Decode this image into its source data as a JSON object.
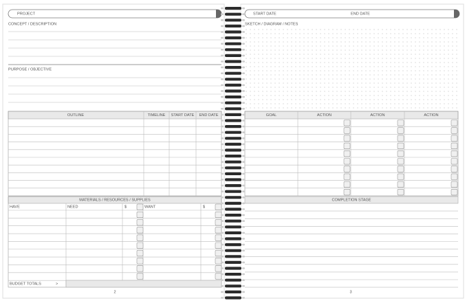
{
  "left_page": {
    "project_label": "PROJECT",
    "concept_label": "CONCEPT / DESCRIPTION",
    "purpose_label": "PURPOSE / OBJECTIVE",
    "outline_headers": [
      "OUTLINE",
      "TIMELINE",
      "START DATE",
      "END DATE"
    ],
    "materials_title": "MATERIALS / RESOURCES / SUPPLIES",
    "materials_headers": [
      "HAVE",
      "NEED",
      "$",
      "WANT",
      "$"
    ],
    "budget_totals_label": "BUDGET TOTALS",
    "budget_arrow": ">",
    "page_number": 2
  },
  "right_page": {
    "start_date_label": "START DATE",
    "end_date_label": "END DATE",
    "sketch_label": "SKETCH / DIAGRAM / NOTES",
    "goal_headers": [
      "GOAL",
      "ACTION",
      "ACTION",
      "ACTION"
    ],
    "completion_label": "COMPLETION STAGE",
    "page_number": 3
  }
}
